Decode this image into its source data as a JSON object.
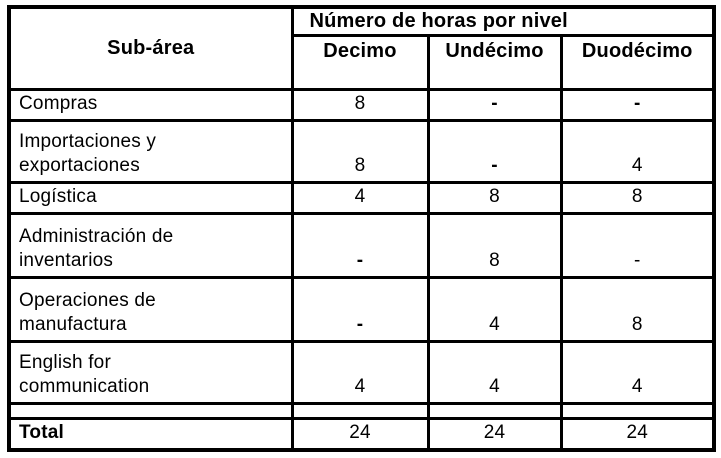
{
  "colors": {
    "border": "#000000",
    "text": "#000000",
    "background": "#ffffff"
  },
  "table": {
    "header": {
      "sub_area": "Sub-área",
      "group": "Número de horas por nivel",
      "levels": [
        "Decimo",
        "Undécimo",
        "Duodécimo"
      ]
    },
    "rows": [
      {
        "label": "Compras",
        "values": [
          "8",
          "-",
          "-"
        ],
        "bold": [
          false,
          true,
          true
        ]
      },
      {
        "label": "Importaciones y\nexportaciones",
        "values": [
          "8",
          "-",
          "4"
        ],
        "bold": [
          false,
          true,
          false
        ]
      },
      {
        "label": "Logística",
        "values": [
          "4",
          "8",
          "8"
        ],
        "bold": [
          false,
          false,
          false
        ]
      },
      {
        "label": "Administración de\ninventarios",
        "values": [
          "-",
          "8",
          "-"
        ],
        "bold": [
          true,
          false,
          false
        ]
      },
      {
        "label": "Operaciones de\nmanufactura",
        "values": [
          "-",
          "4",
          "8"
        ],
        "bold": [
          true,
          false,
          false
        ]
      },
      {
        "label": "English for\ncommunication",
        "values": [
          "4",
          "4",
          "4"
        ],
        "bold": [
          false,
          false,
          false
        ]
      },
      {
        "label": "",
        "values": [
          "",
          "",
          ""
        ],
        "bold": [
          false,
          false,
          false
        ]
      },
      {
        "label": "Total",
        "values": [
          "24",
          "24",
          "24"
        ],
        "bold": [
          false,
          false,
          false
        ],
        "label_bold": true
      }
    ]
  }
}
